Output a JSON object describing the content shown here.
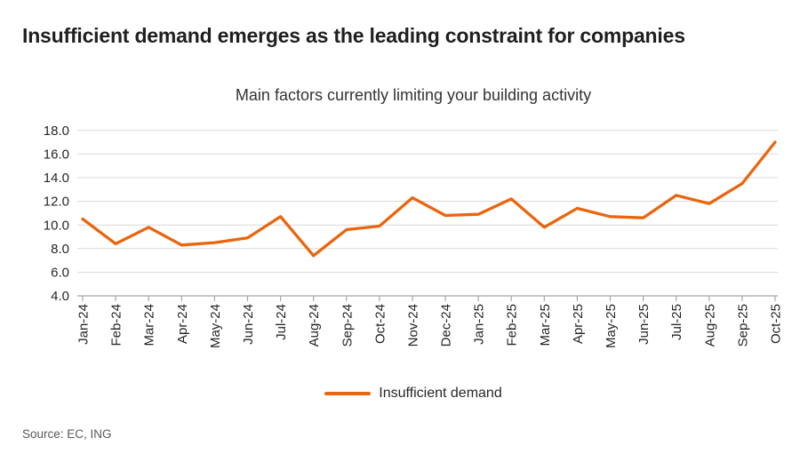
{
  "page": {
    "title": "Insufficient demand emerges as the leading constraint for companies",
    "source": "Source: EC, ING"
  },
  "chart_data": {
    "type": "line",
    "title": "Main factors currently limiting your building activity",
    "categories": [
      "Jan-24",
      "Feb-24",
      "Mar-24",
      "Apr-24",
      "May-24",
      "Jun-24",
      "Jul-24",
      "Aug-24",
      "Sep-24",
      "Oct-24",
      "Nov-24",
      "Dec-24",
      "Jan-25",
      "Feb-25",
      "Mar-25",
      "Apr-25",
      "May-25",
      "Jun-25",
      "Jul-25",
      "Aug-25",
      "Sep-25",
      "Oct-25"
    ],
    "series": [
      {
        "name": "Insufficient demand",
        "color": "#ea650d",
        "values": [
          10.5,
          8.4,
          9.8,
          8.3,
          8.5,
          8.9,
          10.7,
          7.4,
          9.6,
          9.9,
          12.3,
          10.8,
          10.9,
          12.2,
          9.8,
          11.4,
          10.7,
          10.6,
          12.5,
          11.8,
          13.5,
          17.0
        ]
      }
    ],
    "xlabel": "",
    "ylabel": "",
    "ylim": [
      4,
      18
    ],
    "ytick_step": 2,
    "ytick_decimals": 1,
    "grid": true,
    "legend_position": "bottom"
  },
  "colors": {
    "line": "#ea650d",
    "gridline": "#d9d9d9",
    "axis": "#a6a6a6",
    "tick_label": "#262626",
    "title_text": "#1f1f1f",
    "subtitle_text": "#333333",
    "source_text": "#595959"
  }
}
